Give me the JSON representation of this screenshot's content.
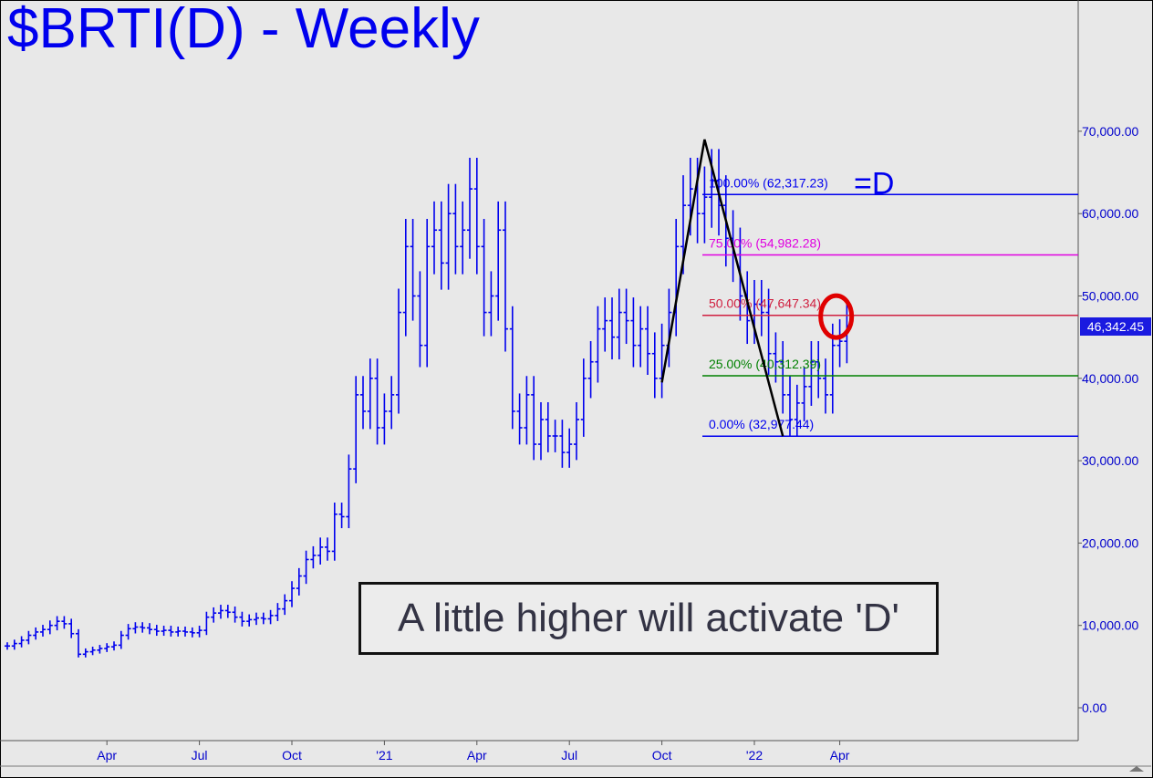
{
  "title": "$BRTI(D) - Weekly",
  "annotation": "A little higher will activate 'D'",
  "last_price": "46,342.45",
  "colors": {
    "price_bars": "#0000ee",
    "line_100": "#0000ee",
    "line_75": "#e000e0",
    "line_50": "#d02040",
    "line_25": "#008000",
    "line_0": "#0000ee",
    "circle": "#e00000"
  },
  "chart_data": {
    "type": "ohlc_bar",
    "ylim": [
      -3000,
      86000
    ],
    "y_ticks": [
      0,
      10000,
      20000,
      30000,
      40000,
      50000,
      60000,
      70000
    ],
    "y_tick_labels": [
      "0.00",
      "10,000.00",
      "20,000.00",
      "30,000.00",
      "40,000.00",
      "50,000.00",
      "60,000.00",
      "70,000.00"
    ],
    "x_ticks": [
      {
        "label": "Apr",
        "week": 14
      },
      {
        "label": "Jul",
        "week": 27
      },
      {
        "label": "Oct",
        "week": 40
      },
      {
        "label": "'21",
        "week": 53
      },
      {
        "label": "Apr",
        "week": 66
      },
      {
        "label": "Jul",
        "week": 79
      },
      {
        "label": "Oct",
        "week": 92
      },
      {
        "label": "'22",
        "week": 105
      },
      {
        "label": "Apr",
        "week": 117
      }
    ],
    "x_range": [
      0,
      168
    ],
    "fib_levels": [
      {
        "label": "100.00% (62,317.23)",
        "value": 62317.23,
        "color_key": "line_100",
        "suffix": "=D"
      },
      {
        "label": "75.00% (54,982.28)",
        "value": 54982.28,
        "color_key": "line_75"
      },
      {
        "label": "50.00% (47,647.34)",
        "value": 47647.34,
        "color_key": "line_50"
      },
      {
        "label": "25.00% (40,312.39)",
        "value": 40312.39,
        "color_key": "line_25"
      },
      {
        "label": "0.00% (32,977.44)",
        "value": 32977.44,
        "color_key": "line_0"
      }
    ],
    "pattern_line": [
      {
        "week": 92,
        "value": 39500
      },
      {
        "week": 98,
        "value": 69000
      },
      {
        "week": 109,
        "value": 32977.44
      }
    ],
    "circle": {
      "week": 116.5,
      "value": 47500
    },
    "closes": [
      7500,
      7800,
      8200,
      8800,
      9200,
      9500,
      10000,
      10500,
      10200,
      9000,
      6500,
      6800,
      7000,
      7200,
      7400,
      7600,
      8800,
      9600,
      9800,
      9700,
      9500,
      9300,
      9400,
      9200,
      9300,
      9200,
      9100,
      9400,
      11000,
      11500,
      11800,
      11600,
      11000,
      10500,
      10700,
      10900,
      10800,
      11200,
      12000,
      13000,
      14500,
      16000,
      18000,
      18500,
      19500,
      19000,
      23500,
      23200,
      29000,
      38000,
      36000,
      40000,
      34000,
      36000,
      38000,
      48000,
      56000,
      50000,
      44000,
      56000,
      58000,
      54000,
      60000,
      56000,
      58000,
      63000,
      56000,
      48000,
      50000,
      58000,
      46000,
      36000,
      34000,
      38000,
      32000,
      35000,
      33000,
      33000,
      31000,
      32000,
      35000,
      40000,
      42000,
      46000,
      47000,
      45000,
      48000,
      47000,
      44000,
      46000,
      43000,
      40000,
      44000,
      48000,
      56000,
      61000,
      63000,
      60000,
      62000,
      64000,
      61000,
      57000,
      55000,
      50000,
      47000,
      49000,
      48000,
      43000,
      42000,
      38000,
      35000,
      37000,
      39000,
      42000,
      40000,
      38000,
      44000,
      44500,
      46342
    ]
  }
}
